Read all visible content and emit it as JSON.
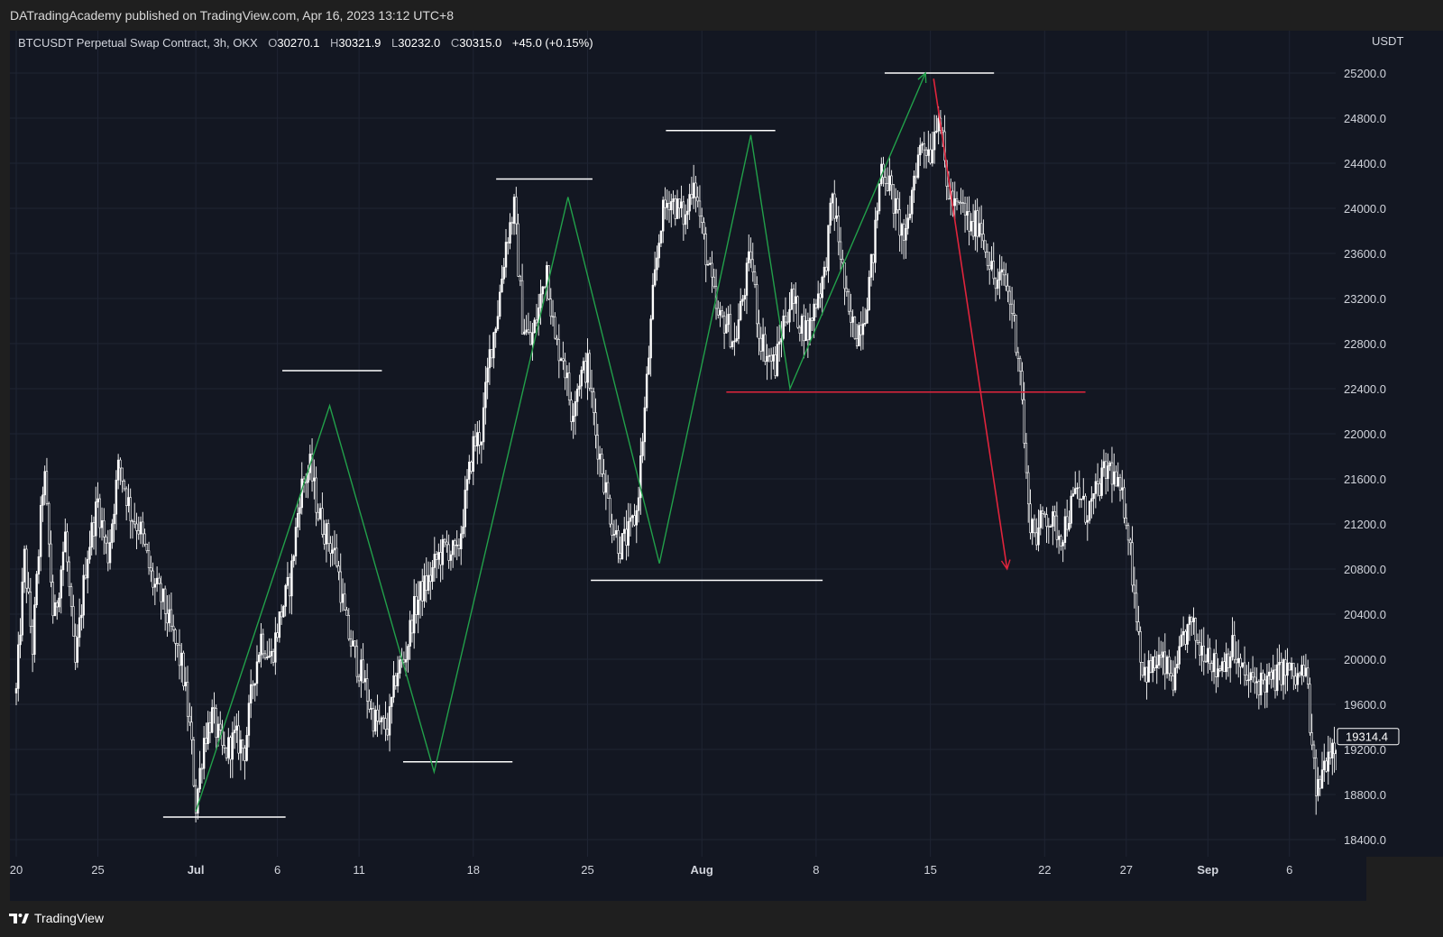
{
  "header": {
    "published_text": "DATradingAcademy published on TradingView.com, Apr 16, 2023 13:12 UTC+8"
  },
  "legend": {
    "symbol": "BTCUSDT Perpetual Swap Contract, 3h, OKX",
    "o_label": "O",
    "o_value": "30270.1",
    "h_label": "H",
    "h_value": "30321.9",
    "l_label": "L",
    "l_value": "30232.0",
    "c_label": "C",
    "c_value": "30315.0",
    "change": "+45.0 (+0.15%)"
  },
  "footer": {
    "brand": "TradingView",
    "logo_icon": "tradingview-logo-icon"
  },
  "colors": {
    "background": "#131722",
    "candles": "#ffffff",
    "green_line": "#22a04a",
    "red_line": "#e0243c",
    "level_line": "#ffffff",
    "grid": "#1f2433",
    "price_tag_bg": "#ffffff"
  },
  "chart_data": {
    "type": "candlestick",
    "currency": "USDT",
    "timeframe": "3h",
    "last_price": "19314.4",
    "ylim": [
      18400,
      25500
    ],
    "y_ticks": [
      "25200.0",
      "24800.0",
      "24400.0",
      "24000.0",
      "23600.0",
      "23200.0",
      "22800.0",
      "22400.0",
      "22000.0",
      "21600.0",
      "21200.0",
      "20800.0",
      "20400.0",
      "20000.0",
      "19600.0",
      "19200.0",
      "18800.0",
      "18400.0"
    ],
    "x_ticks": [
      {
        "label": "20",
        "day": 0
      },
      {
        "label": "25",
        "day": 5
      },
      {
        "label": "Jul",
        "day": 11
      },
      {
        "label": "6",
        "day": 16
      },
      {
        "label": "11",
        "day": 21
      },
      {
        "label": "18",
        "day": 28
      },
      {
        "label": "25",
        "day": 35
      },
      {
        "label": "Aug",
        "day": 42
      },
      {
        "label": "8",
        "day": 49
      },
      {
        "label": "15",
        "day": 56
      },
      {
        "label": "22",
        "day": 63
      },
      {
        "label": "27",
        "day": 68
      },
      {
        "label": "Sep",
        "day": 73
      },
      {
        "label": "6",
        "day": 78
      }
    ],
    "x_start_date": "2022-06-20",
    "price_path": [
      [
        0,
        19700
      ],
      [
        0.5,
        20900
      ],
      [
        1,
        20100
      ],
      [
        1.7,
        21700
      ],
      [
        2.3,
        20300
      ],
      [
        3,
        21100
      ],
      [
        3.6,
        19900
      ],
      [
        4.3,
        20900
      ],
      [
        5,
        21400
      ],
      [
        5.6,
        20900
      ],
      [
        6.3,
        21750
      ],
      [
        7,
        21300
      ],
      [
        7.6,
        21150
      ],
      [
        8.3,
        20700
      ],
      [
        9,
        20500
      ],
      [
        9.6,
        20200
      ],
      [
        10.2,
        19900
      ],
      [
        10.7,
        19300
      ],
      [
        11,
        18700
      ],
      [
        11.5,
        19300
      ],
      [
        12,
        19500
      ],
      [
        12.7,
        19150
      ],
      [
        13.4,
        19300
      ],
      [
        14,
        19200
      ],
      [
        14.5,
        19800
      ],
      [
        15,
        20200
      ],
      [
        15.6,
        20000
      ],
      [
        16.2,
        20400
      ],
      [
        16.8,
        20700
      ],
      [
        17.4,
        21500
      ],
      [
        18,
        21700
      ],
      [
        18.5,
        21300
      ],
      [
        19,
        21100
      ],
      [
        19.6,
        20900
      ],
      [
        20.2,
        20300
      ],
      [
        20.8,
        20000
      ],
      [
        21.3,
        19800
      ],
      [
        21.8,
        19500
      ],
      [
        22.3,
        19400
      ],
      [
        22.8,
        19400
      ],
      [
        23.3,
        19900
      ],
      [
        23.8,
        20000
      ],
      [
        24.3,
        20400
      ],
      [
        24.8,
        20600
      ],
      [
        25.3,
        20700
      ],
      [
        25.8,
        20900
      ],
      [
        26.4,
        21000
      ],
      [
        27,
        20900
      ],
      [
        27.5,
        21400
      ],
      [
        28,
        21900
      ],
      [
        28.5,
        22000
      ],
      [
        29,
        22700
      ],
      [
        29.5,
        23100
      ],
      [
        30,
        23700
      ],
      [
        30.5,
        24000
      ],
      [
        31,
        23000
      ],
      [
        31.5,
        22800
      ],
      [
        32,
        23100
      ],
      [
        32.5,
        23500
      ],
      [
        33,
        22800
      ],
      [
        33.5,
        22700
      ],
      [
        34,
        22200
      ],
      [
        34.5,
        22500
      ],
      [
        35,
        22600
      ],
      [
        35.5,
        22000
      ],
      [
        36,
        21600
      ],
      [
        36.5,
        21200
      ],
      [
        37,
        21000
      ],
      [
        37.5,
        21100
      ],
      [
        38,
        21300
      ],
      [
        38.5,
        22200
      ],
      [
        39,
        23200
      ],
      [
        39.5,
        23900
      ],
      [
        40,
        24100
      ],
      [
        40.5,
        24000
      ],
      [
        41,
        23900
      ],
      [
        41.5,
        24300
      ],
      [
        42,
        23800
      ],
      [
        42.5,
        23400
      ],
      [
        43,
        23000
      ],
      [
        43.5,
        23000
      ],
      [
        44,
        22800
      ],
      [
        44.5,
        23200
      ],
      [
        45,
        23600
      ],
      [
        45.5,
        22900
      ],
      [
        46,
        22700
      ],
      [
        46.5,
        22600
      ],
      [
        47,
        23000
      ],
      [
        47.5,
        23200
      ],
      [
        48,
        23000
      ],
      [
        48.5,
        22900
      ],
      [
        49,
        23200
      ],
      [
        49.5,
        23400
      ],
      [
        50,
        24100
      ],
      [
        50.5,
        23600
      ],
      [
        51,
        23000
      ],
      [
        51.5,
        22900
      ],
      [
        52,
        23100
      ],
      [
        52.5,
        23600
      ],
      [
        53,
        24400
      ],
      [
        53.5,
        24200
      ],
      [
        54,
        23900
      ],
      [
        54.5,
        23700
      ],
      [
        55,
        24300
      ],
      [
        55.5,
        24600
      ],
      [
        56,
        24500
      ],
      [
        56.5,
        24900
      ],
      [
        57,
        24200
      ],
      [
        57.5,
        24000
      ],
      [
        58,
        24000
      ],
      [
        58.5,
        23800
      ],
      [
        59,
        23900
      ],
      [
        59.5,
        23600
      ],
      [
        60,
        23300
      ],
      [
        60.5,
        23400
      ],
      [
        61,
        23100
      ],
      [
        61.5,
        22600
      ],
      [
        62,
        21300
      ],
      [
        62.5,
        21100
      ],
      [
        63,
        21300
      ],
      [
        63.5,
        21200
      ],
      [
        64,
        21100
      ],
      [
        64.5,
        21300
      ],
      [
        65,
        21500
      ],
      [
        65.5,
        21300
      ],
      [
        66,
        21400
      ],
      [
        66.5,
        21600
      ],
      [
        67,
        21700
      ],
      [
        67.5,
        21500
      ],
      [
        68,
        21300
      ],
      [
        68.5,
        20600
      ],
      [
        69,
        19900
      ],
      [
        69.5,
        19900
      ],
      [
        70,
        20000
      ],
      [
        70.5,
        19900
      ],
      [
        71,
        19800
      ],
      [
        71.5,
        20200
      ],
      [
        72,
        20300
      ],
      [
        72.5,
        20100
      ],
      [
        73,
        20100
      ],
      [
        73.5,
        19900
      ],
      [
        74,
        20000
      ],
      [
        74.5,
        20100
      ],
      [
        75,
        19900
      ],
      [
        75.5,
        19800
      ],
      [
        76,
        19800
      ],
      [
        76.5,
        19800
      ],
      [
        77,
        19800
      ],
      [
        77.5,
        19900
      ],
      [
        78,
        19900
      ],
      [
        78.4,
        19800
      ],
      [
        78.8,
        19900
      ],
      [
        79.1,
        19800
      ],
      [
        79.4,
        19100
      ],
      [
        79.7,
        18800
      ],
      [
        80,
        19000
      ],
      [
        80.4,
        19200
      ],
      [
        80.9,
        19300
      ],
      [
        81.3,
        19310
      ]
    ],
    "annotations": {
      "green_zigzag": [
        [
          11,
          18650
        ],
        [
          19.2,
          22250
        ],
        [
          25.6,
          19000
        ],
        [
          33.8,
          24100
        ],
        [
          39.4,
          20850
        ],
        [
          45,
          24650
        ],
        [
          47.4,
          22400
        ],
        [
          55.7,
          25200
        ]
      ],
      "red_arrow": [
        [
          56.2,
          25150
        ],
        [
          60.7,
          20800
        ]
      ],
      "red_level": {
        "value": 22370,
        "from_day": 43.5,
        "to_day": 65.5
      },
      "white_levels": [
        {
          "value": 18600,
          "from_day": 9,
          "to_day": 16.5
        },
        {
          "value": 22560,
          "from_day": 16.3,
          "to_day": 22.4
        },
        {
          "value": 19090,
          "from_day": 23.7,
          "to_day": 30.4
        },
        {
          "value": 24260,
          "from_day": 29.4,
          "to_day": 35.3
        },
        {
          "value": 20700,
          "from_day": 35.2,
          "to_day": 49.4
        },
        {
          "value": 24690,
          "from_day": 39.8,
          "to_day": 46.5
        },
        {
          "value": 25200,
          "from_day": 53.2,
          "to_day": 59.9
        }
      ]
    }
  }
}
